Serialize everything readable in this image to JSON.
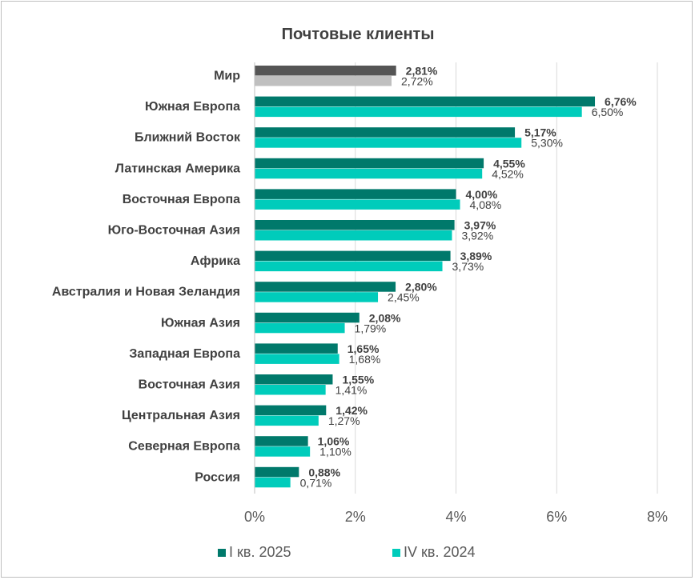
{
  "colors": {
    "series1": "#00796b",
    "series2": "#00ccbb",
    "world1": "#555555",
    "world2": "#bfbfbf",
    "text": "#404040",
    "grid": "#d9d9d9"
  },
  "chart_data": {
    "type": "bar",
    "orientation": "horizontal",
    "title": "Почтовые клиенты",
    "categories": [
      "Мир",
      "Южная Европа",
      "Ближний Восток",
      "Латинская Америка",
      "Восточная Европа",
      "Юго-Восточная Азия",
      "Африка",
      "Австралия и Новая Зеландия",
      "Южная Азия",
      "Западная Европа",
      "Восточная Азия",
      "Центральная Азия",
      "Северная Европа",
      "Россия"
    ],
    "series": [
      {
        "name": "I кв. 2025",
        "values": [
          2.81,
          6.76,
          5.17,
          4.55,
          4.0,
          3.97,
          3.89,
          2.8,
          2.08,
          1.65,
          1.55,
          1.42,
          1.06,
          0.88
        ],
        "labels": [
          "2,81%",
          "6,76%",
          "5,17%",
          "4,55%",
          "4,00%",
          "3,97%",
          "3,89%",
          "2,80%",
          "2,08%",
          "1,65%",
          "1,55%",
          "1,42%",
          "1,06%",
          "0,88%"
        ]
      },
      {
        "name": "IV кв. 2024",
        "values": [
          2.72,
          6.5,
          5.3,
          4.52,
          4.08,
          3.92,
          3.73,
          2.45,
          1.79,
          1.68,
          1.41,
          1.27,
          1.1,
          0.71
        ],
        "labels": [
          "2,72%",
          "6,50%",
          "5,30%",
          "4,52%",
          "4,08%",
          "3,92%",
          "3,73%",
          "2,45%",
          "1,79%",
          "1,68%",
          "1,41%",
          "1,27%",
          "1,10%",
          "0,71%"
        ]
      }
    ],
    "highlight_category": "Мир",
    "xlim": [
      0,
      8
    ],
    "xticks": [
      0,
      2,
      4,
      6,
      8
    ],
    "xtick_labels": [
      "0%",
      "2%",
      "4%",
      "6%",
      "8%"
    ],
    "grid": "vertical",
    "legend_position": "bottom"
  }
}
